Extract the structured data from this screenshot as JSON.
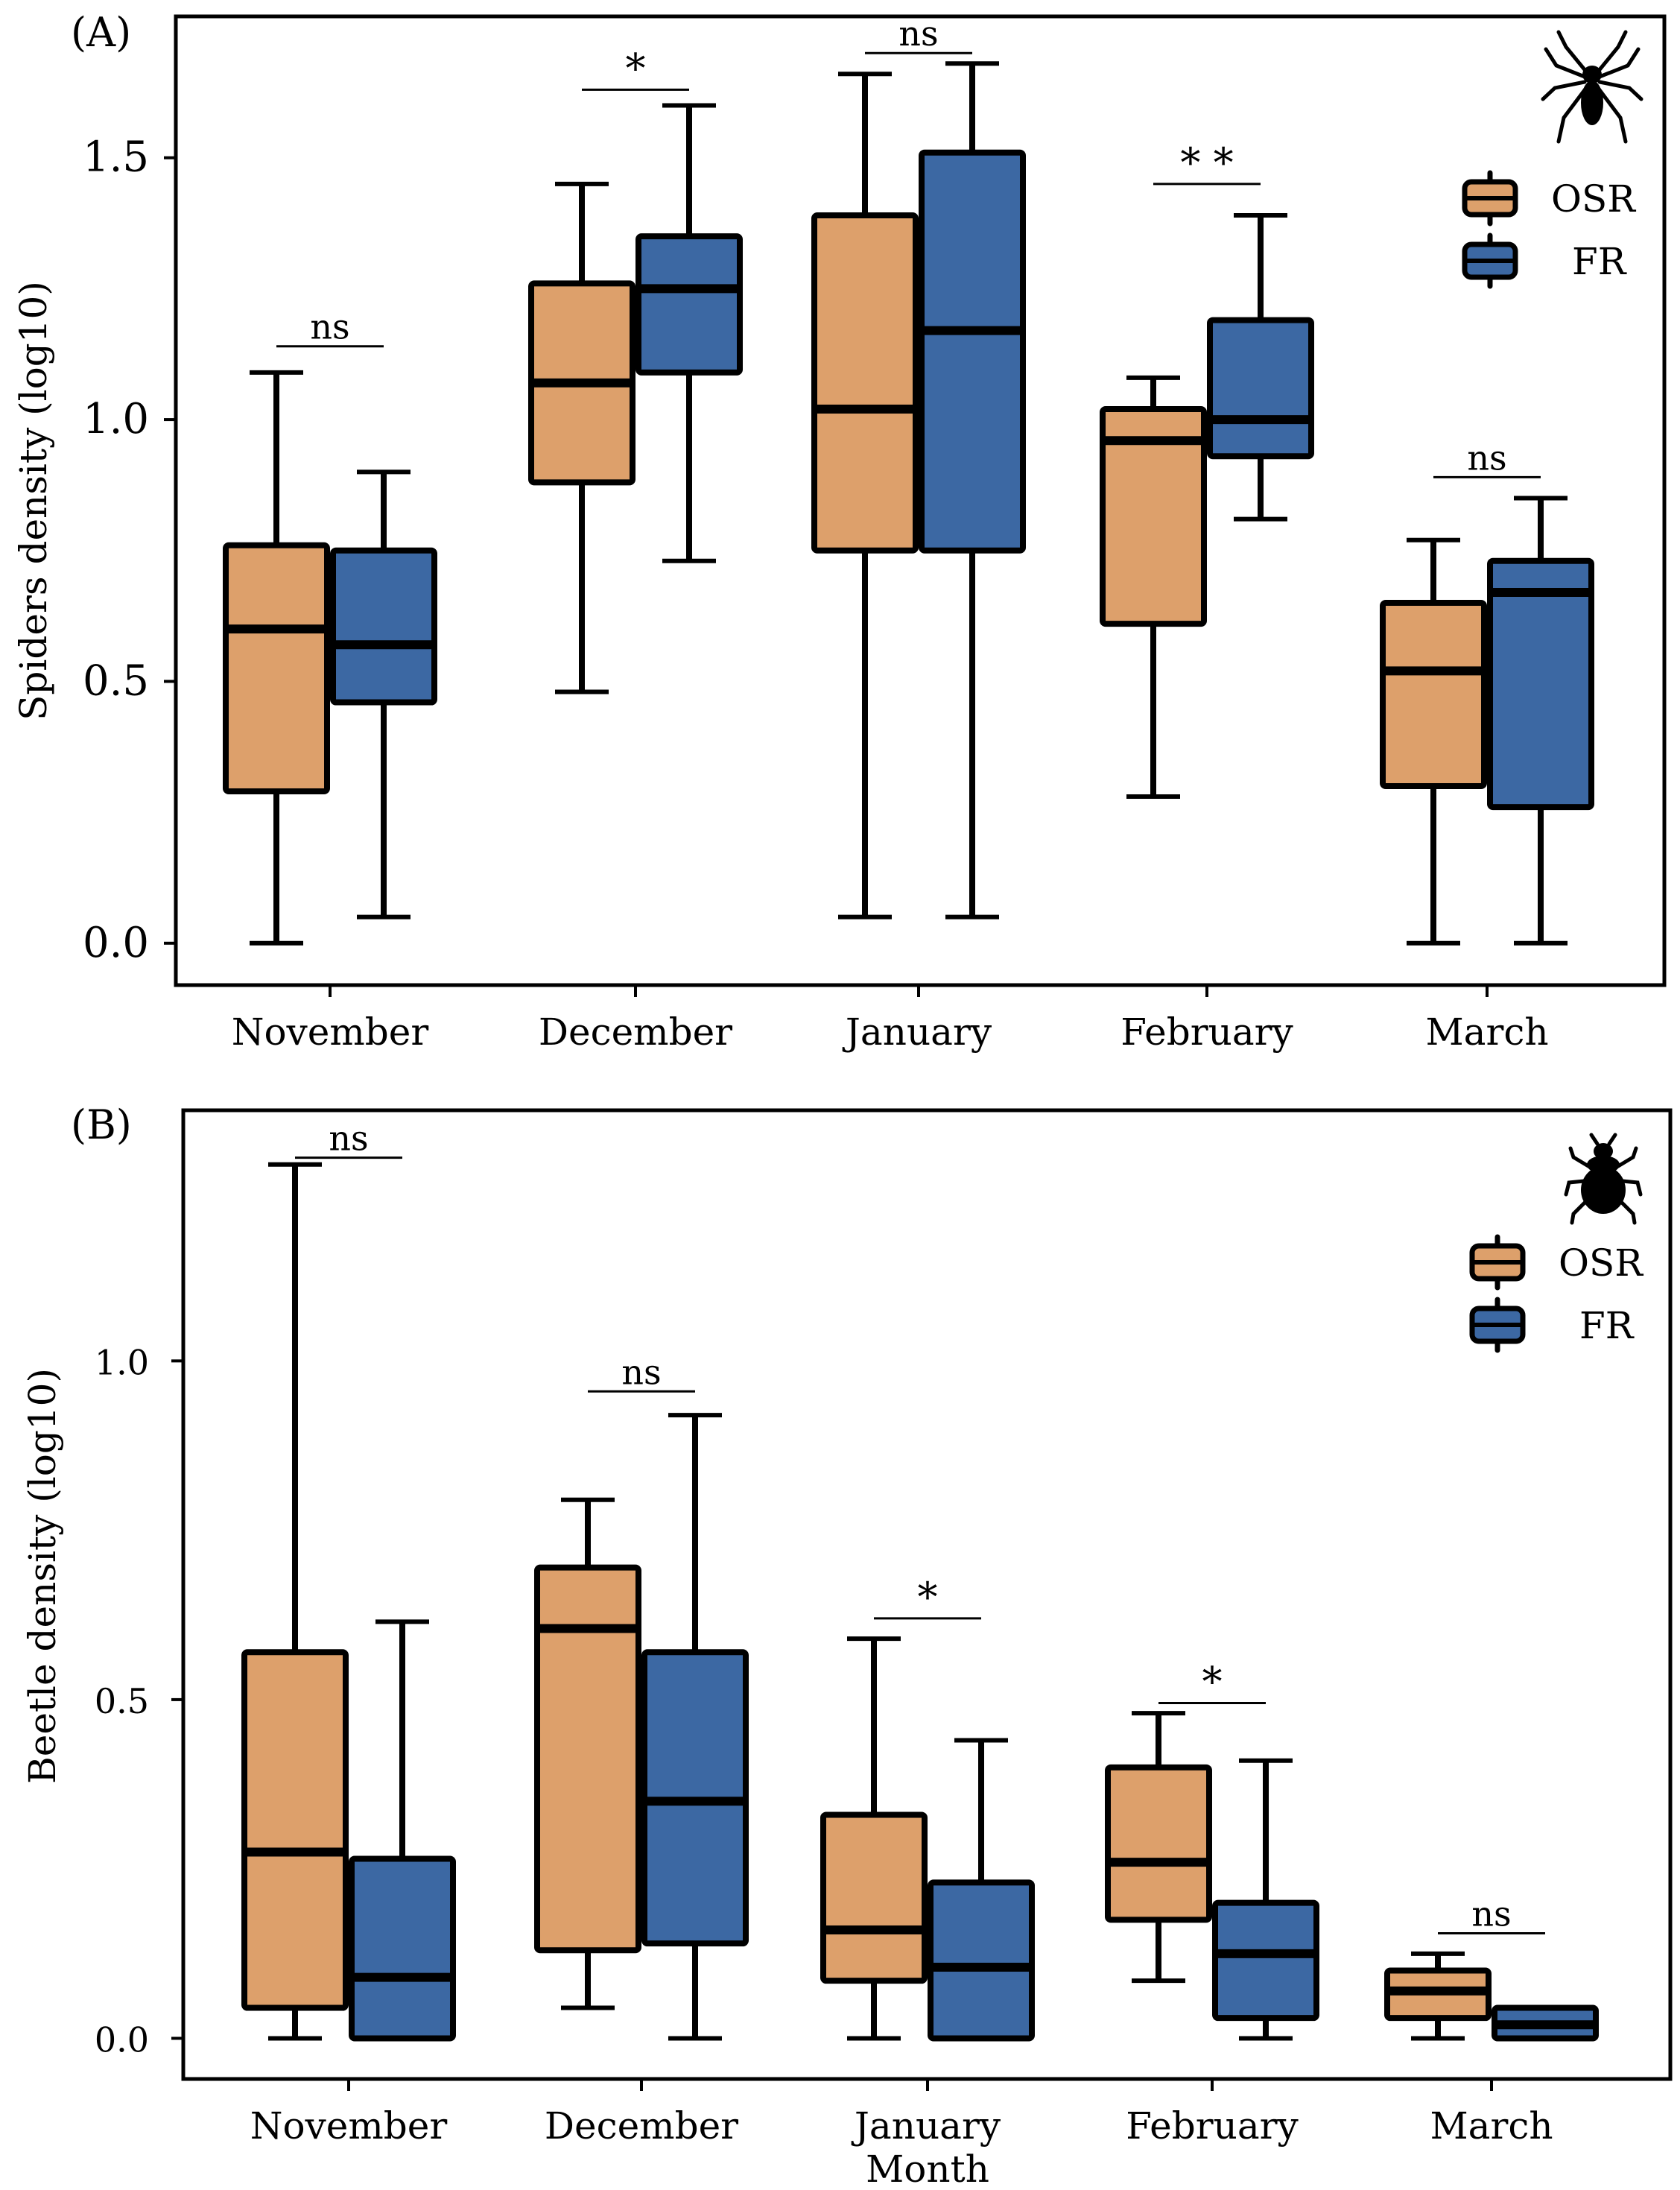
{
  "colors": {
    "osr": "#DDA06B",
    "fr": "#3C68A3",
    "stroke": "#000000",
    "background": "#FFFFFF"
  },
  "chart_data": [
    {
      "panel_label": "(A)",
      "type": "boxplot",
      "ylabel": "Spiders density (log10)",
      "xlabel": "",
      "ylim": [
        -0.08,
        1.77
      ],
      "yticks": [
        0.0,
        0.5,
        1.0,
        1.5
      ],
      "ytick_labels": [
        "0.0",
        "0.5",
        "1.0",
        "1.5"
      ],
      "categories": [
        "November",
        "December",
        "January",
        "February",
        "March"
      ],
      "series": [
        {
          "name": "OSR",
          "boxes": [
            {
              "min": 0.0,
              "q1": 0.29,
              "median": 0.6,
              "q3": 0.76,
              "max": 1.09
            },
            {
              "min": 0.48,
              "q1": 0.88,
              "median": 1.07,
              "q3": 1.26,
              "max": 1.45
            },
            {
              "min": 0.05,
              "q1": 0.75,
              "median": 1.02,
              "q3": 1.39,
              "max": 1.66
            },
            {
              "min": 0.28,
              "q1": 0.61,
              "median": 0.96,
              "q3": 1.02,
              "max": 1.08
            },
            {
              "min": 0.0,
              "q1": 0.3,
              "median": 0.52,
              "q3": 0.65,
              "max": 0.77
            }
          ]
        },
        {
          "name": "FR",
          "boxes": [
            {
              "min": 0.05,
              "q1": 0.46,
              "median": 0.57,
              "q3": 0.75,
              "max": 0.9
            },
            {
              "min": 0.73,
              "q1": 1.09,
              "median": 1.25,
              "q3": 1.35,
              "max": 1.6
            },
            {
              "min": 0.05,
              "q1": 0.75,
              "median": 1.17,
              "q3": 1.51,
              "max": 1.68
            },
            {
              "min": 0.81,
              "q1": 0.93,
              "median": 1.0,
              "q3": 1.19,
              "max": 1.39
            },
            {
              "min": 0.0,
              "q1": 0.26,
              "median": 0.67,
              "q3": 0.73,
              "max": 0.85
            }
          ]
        }
      ],
      "significance": [
        {
          "category": "November",
          "label": "ns",
          "y": 1.14
        },
        {
          "category": "December",
          "label": "*",
          "y": 1.63
        },
        {
          "category": "January",
          "label": "ns",
          "y": 1.7
        },
        {
          "category": "February",
          "label": "* *",
          "y": 1.45
        },
        {
          "category": "March",
          "label": "ns",
          "y": 0.89
        }
      ],
      "legend": {
        "position": "top-right",
        "entries": [
          "OSR",
          "FR"
        ]
      },
      "icon": "spider-icon"
    },
    {
      "panel_label": "(B)",
      "type": "boxplot",
      "ylabel": "Beetle density (log10)",
      "xlabel": "Month",
      "ylim": [
        -0.06,
        1.37
      ],
      "yticks": [
        0.0,
        0.5,
        1.0
      ],
      "ytick_labels": [
        "0.0",
        "0.5",
        "1.0"
      ],
      "categories": [
        "November",
        "December",
        "January",
        "February",
        "March"
      ],
      "series": [
        {
          "name": "OSR",
          "boxes": [
            {
              "min": 0.0,
              "q1": 0.045,
              "median": 0.275,
              "q3": 0.57,
              "max": 1.29
            },
            {
              "min": 0.045,
              "q1": 0.13,
              "median": 0.605,
              "q3": 0.695,
              "max": 0.795
            },
            {
              "min": 0.0,
              "q1": 0.085,
              "median": 0.16,
              "q3": 0.33,
              "max": 0.59
            },
            {
              "min": 0.085,
              "q1": 0.175,
              "median": 0.26,
              "q3": 0.4,
              "max": 0.48
            },
            {
              "min": 0.0,
              "q1": 0.03,
              "median": 0.07,
              "q3": 0.1,
              "max": 0.125
            }
          ]
        },
        {
          "name": "FR",
          "boxes": [
            {
              "min": 0.0,
              "q1": 0.0,
              "median": 0.09,
              "q3": 0.265,
              "max": 0.615
            },
            {
              "min": 0.0,
              "q1": 0.14,
              "median": 0.35,
              "q3": 0.57,
              "max": 0.92
            },
            {
              "min": 0.0,
              "q1": 0.0,
              "median": 0.105,
              "q3": 0.23,
              "max": 0.44
            },
            {
              "min": 0.0,
              "q1": 0.03,
              "median": 0.125,
              "q3": 0.2,
              "max": 0.41
            },
            {
              "min": 0.0,
              "q1": 0.0,
              "median": 0.02,
              "q3": 0.045,
              "max": 0.045
            }
          ]
        }
      ],
      "significance": [
        {
          "category": "November",
          "label": "ns",
          "y": 1.3
        },
        {
          "category": "December",
          "label": "ns",
          "y": 0.955
        },
        {
          "category": "January",
          "label": "*",
          "y": 0.62
        },
        {
          "category": "February",
          "label": "*",
          "y": 0.495
        },
        {
          "category": "March",
          "label": "ns",
          "y": 0.155
        }
      ],
      "legend": {
        "position": "top-right",
        "entries": [
          "OSR",
          "FR"
        ]
      },
      "icon": "beetle-icon"
    }
  ]
}
